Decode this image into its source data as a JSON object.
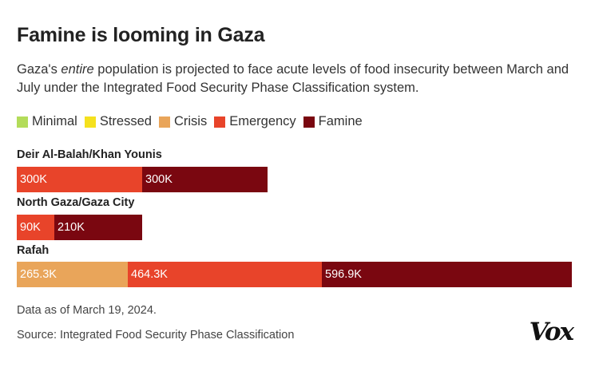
{
  "header": {
    "title": "Famine is looming in Gaza",
    "subtitle_pre": "Gaza's ",
    "subtitle_em": "entire",
    "subtitle_post": " population is projected to face acute levels of food insecurity between March and July under the Integrated Food Security Phase Classification system."
  },
  "legend": [
    {
      "label": "Minimal",
      "color": "#b3dc5a"
    },
    {
      "label": "Stressed",
      "color": "#f5e11e"
    },
    {
      "label": "Crisis",
      "color": "#e9a55a"
    },
    {
      "label": "Emergency",
      "color": "#e8442a"
    },
    {
      "label": "Famine",
      "color": "#7a0710"
    }
  ],
  "chart_data": {
    "type": "bar",
    "orientation": "horizontal",
    "stacked": true,
    "title": "Famine is looming in Gaza",
    "categories": [
      "Deir Al-Balah/Khan Younis",
      "North Gaza/Gaza City",
      "Rafah"
    ],
    "series": [
      {
        "name": "Minimal",
        "color": "#b3dc5a",
        "values": [
          0,
          0,
          0
        ],
        "labels": [
          "",
          "",
          ""
        ]
      },
      {
        "name": "Stressed",
        "color": "#f5e11e",
        "values": [
          0,
          0,
          0
        ],
        "labels": [
          "",
          "",
          ""
        ]
      },
      {
        "name": "Crisis",
        "color": "#e9a55a",
        "values": [
          0,
          0,
          265300
        ],
        "labels": [
          "",
          "",
          "265.3K"
        ]
      },
      {
        "name": "Emergency",
        "color": "#e8442a",
        "values": [
          300000,
          90000,
          464300
        ],
        "labels": [
          "300K",
          "90K",
          "464.3K"
        ]
      },
      {
        "name": "Famine",
        "color": "#7a0710",
        "values": [
          300000,
          210000,
          596900
        ],
        "labels": [
          "300K",
          "210K",
          "596.9K"
        ]
      }
    ],
    "xlim": [
      0,
      1326500
    ],
    "legend_position": "top"
  },
  "footer": {
    "date_note": "Data as of March 19, 2024.",
    "source": "Source: Integrated Food Security Phase Classification",
    "brand": "Vox"
  }
}
